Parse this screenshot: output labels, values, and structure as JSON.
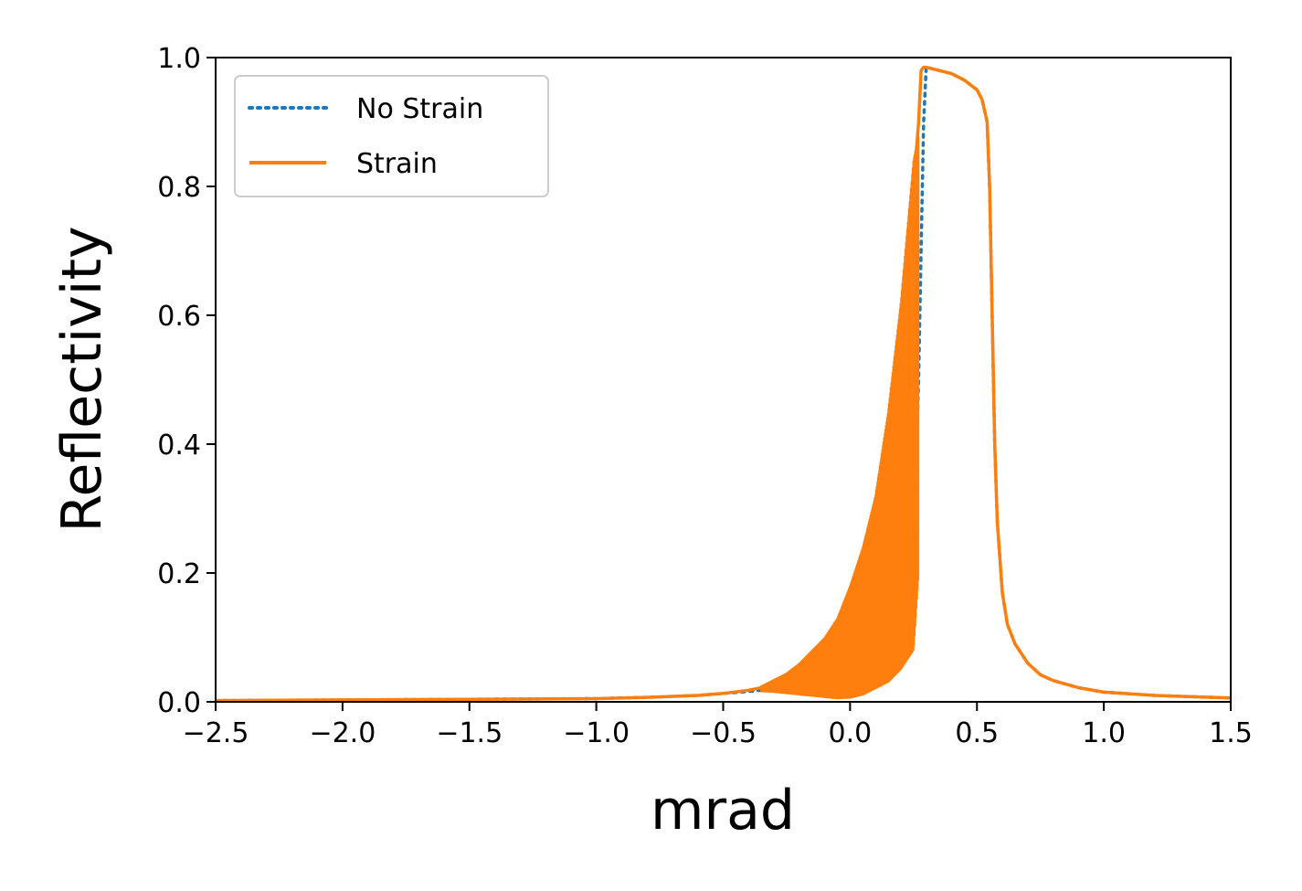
{
  "chart_data": {
    "type": "line",
    "title": "",
    "xlabel": "mrad",
    "ylabel": "Reflectivity",
    "xlim": [
      -2.5,
      1.5
    ],
    "ylim": [
      0.0,
      1.0
    ],
    "x_ticks": [
      -2.5,
      -2.0,
      -1.5,
      -1.0,
      -0.5,
      0.0,
      0.5,
      1.0,
      1.5
    ],
    "x_tick_labels": [
      "−2.5",
      "−2.0",
      "−1.5",
      "−1.0",
      "−0.5",
      "0.0",
      "0.5",
      "1.0",
      "1.5"
    ],
    "y_ticks": [
      0.0,
      0.2,
      0.4,
      0.6,
      0.8,
      1.0
    ],
    "y_tick_labels": [
      "0.0",
      "0.2",
      "0.4",
      "0.6",
      "0.8",
      "1.0"
    ],
    "grid": false,
    "legend": {
      "position": "upper-left"
    },
    "series": [
      {
        "name": "No Strain",
        "color": "#1f77b4",
        "line_style": "dotted",
        "x": [
          -2.5,
          -2.0,
          -1.5,
          -1.0,
          -0.8,
          -0.6,
          -0.5,
          -0.4,
          -0.3,
          -0.2,
          -0.1,
          0.0,
          0.05,
          0.1,
          0.15,
          0.2,
          0.23,
          0.25,
          0.26,
          0.27,
          0.28,
          0.29,
          0.3,
          0.35,
          0.4,
          0.45,
          0.5,
          0.52,
          0.54,
          0.55,
          0.56,
          0.57,
          0.58,
          0.6,
          0.62,
          0.65,
          0.7,
          0.75,
          0.8,
          0.9,
          1.0,
          1.2,
          1.5
        ],
        "y": [
          0.002,
          0.003,
          0.004,
          0.005,
          0.007,
          0.01,
          0.013,
          0.016,
          0.02,
          0.025,
          0.03,
          0.037,
          0.042,
          0.055,
          0.08,
          0.14,
          0.2,
          0.28,
          0.36,
          0.5,
          0.7,
          0.9,
          0.985,
          0.98,
          0.975,
          0.965,
          0.95,
          0.935,
          0.9,
          0.8,
          0.6,
          0.4,
          0.28,
          0.17,
          0.12,
          0.09,
          0.06,
          0.042,
          0.033,
          0.022,
          0.015,
          0.01,
          0.006
        ]
      },
      {
        "name": "Strain",
        "color": "#ff7f0e",
        "line_style": "solid",
        "x": [
          -2.5,
          -2.0,
          -1.5,
          -1.0,
          -0.8,
          -0.6,
          -0.5,
          -0.4,
          -0.3,
          -0.25,
          -0.2,
          -0.15,
          -0.1,
          -0.05,
          0.0,
          0.05,
          0.1,
          0.15,
          0.2,
          0.25,
          0.27,
          0.28,
          0.29,
          0.3,
          0.35,
          0.4,
          0.45,
          0.5,
          0.52,
          0.54,
          0.55,
          0.56,
          0.57,
          0.58,
          0.6,
          0.62,
          0.65,
          0.7,
          0.75,
          0.8,
          0.9,
          1.0,
          1.2,
          1.5
        ],
        "y": [
          0.002,
          0.003,
          0.004,
          0.005,
          0.007,
          0.01,
          0.013,
          0.018,
          0.026,
          0.034,
          0.045,
          0.06,
          0.08,
          0.1,
          0.13,
          0.18,
          0.26,
          0.38,
          0.55,
          0.8,
          0.9,
          0.98,
          0.985,
          0.985,
          0.98,
          0.975,
          0.965,
          0.95,
          0.935,
          0.9,
          0.8,
          0.6,
          0.4,
          0.28,
          0.17,
          0.12,
          0.09,
          0.06,
          0.042,
          0.033,
          0.022,
          0.015,
          0.01,
          0.006
        ],
        "oscillation_band": {
          "x": [
            -0.35,
            -0.3,
            -0.25,
            -0.2,
            -0.15,
            -0.1,
            -0.05,
            0.0,
            0.05,
            0.1,
            0.15,
            0.2,
            0.25,
            0.27
          ],
          "lower": [
            0.015,
            0.014,
            0.012,
            0.01,
            0.008,
            0.006,
            0.004,
            0.005,
            0.01,
            0.02,
            0.03,
            0.05,
            0.08,
            0.2
          ],
          "upper": [
            0.025,
            0.035,
            0.045,
            0.06,
            0.08,
            0.1,
            0.13,
            0.18,
            0.24,
            0.32,
            0.45,
            0.62,
            0.84,
            0.88
          ]
        }
      }
    ]
  }
}
